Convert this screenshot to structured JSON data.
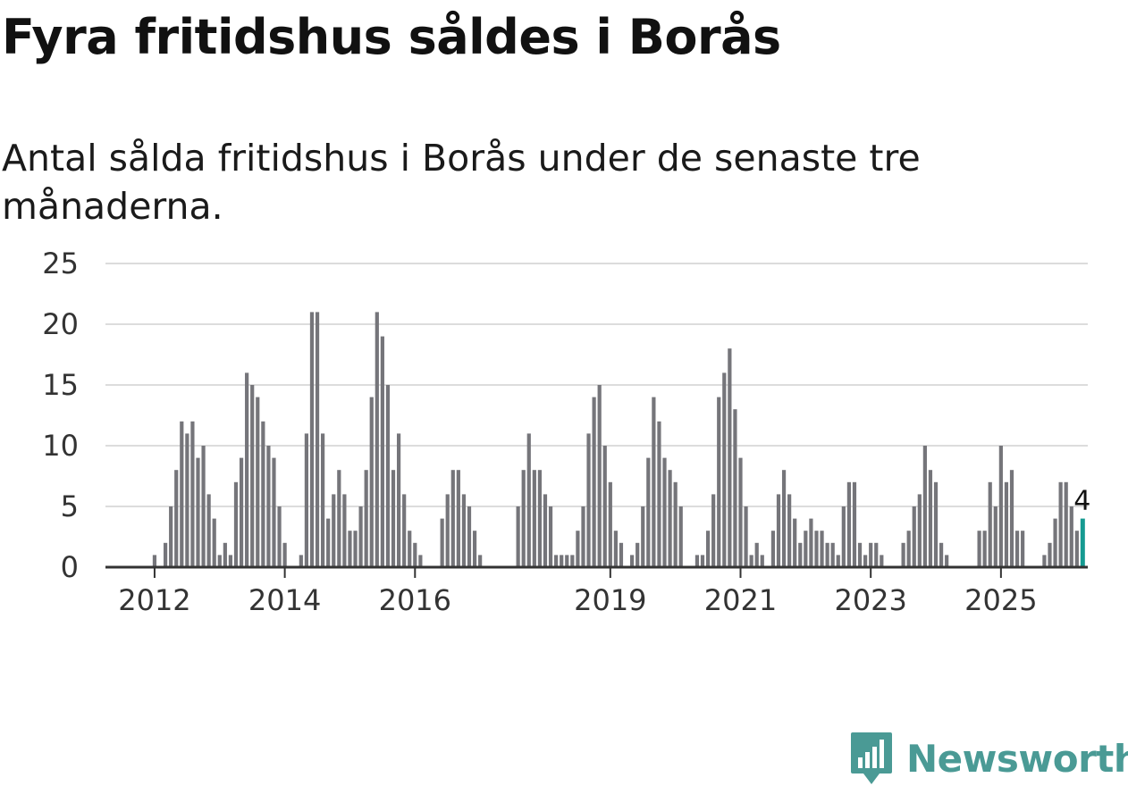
{
  "title": "Fyra fritidshus såldes i Borås",
  "subtitle": "Antal sålda fritidshus i Borås under de senaste tre månaderna.",
  "brand": {
    "name": "Newsworthy",
    "color": "#4a9a95"
  },
  "colors": {
    "bar": "#75757a",
    "highlight": "#159a91",
    "grid": "#dcdcdc",
    "axis": "#333333"
  },
  "chart_data": {
    "type": "bar",
    "title": "Fyra fritidshus såldes i Borås",
    "subtitle": "Antal sålda fritidshus i Borås under de senaste tre månaderna.",
    "xlabel": "",
    "ylabel": "",
    "ylim": [
      0,
      25
    ],
    "yticks": [
      0,
      5,
      10,
      15,
      20,
      25
    ],
    "grid": true,
    "x_start": "2011-01",
    "xtick_labels": [
      {
        "label": "2012",
        "month": "2012-01"
      },
      {
        "label": "2014",
        "month": "2014-01"
      },
      {
        "label": "2016",
        "month": "2016-01"
      },
      {
        "label": "2019",
        "month": "2019-01"
      },
      {
        "label": "2021",
        "month": "2021-01"
      },
      {
        "label": "2023",
        "month": "2023-01"
      },
      {
        "label": "2025",
        "month": "2025-01"
      }
    ],
    "values": [
      0,
      0,
      0,
      0,
      0,
      0,
      0,
      0,
      0,
      0,
      0,
      0,
      1,
      0,
      2,
      5,
      8,
      12,
      11,
      12,
      9,
      10,
      6,
      4,
      1,
      2,
      1,
      7,
      9,
      16,
      15,
      14,
      12,
      10,
      9,
      5,
      2,
      0,
      0,
      1,
      11,
      21,
      21,
      11,
      4,
      6,
      8,
      6,
      3,
      3,
      5,
      8,
      14,
      21,
      19,
      15,
      8,
      11,
      6,
      3,
      2,
      1,
      0,
      0,
      0,
      4,
      6,
      8,
      8,
      6,
      5,
      3,
      1,
      0,
      0,
      0,
      0,
      0,
      0,
      5,
      8,
      11,
      8,
      8,
      6,
      5,
      1,
      1,
      1,
      1,
      3,
      5,
      11,
      14,
      15,
      10,
      7,
      3,
      2,
      0,
      1,
      2,
      5,
      9,
      14,
      12,
      9,
      8,
      7,
      5,
      0,
      0,
      1,
      1,
      3,
      6,
      14,
      16,
      18,
      13,
      9,
      5,
      1,
      2,
      1,
      0,
      3,
      6,
      8,
      6,
      4,
      2,
      3,
      4,
      3,
      3,
      2,
      2,
      1,
      5,
      7,
      7,
      2,
      1,
      2,
      2,
      1,
      0,
      0,
      0,
      2,
      3,
      5,
      6,
      10,
      8,
      7,
      2,
      1,
      0,
      0,
      0,
      0,
      0,
      3,
      3,
      7,
      5,
      10,
      7,
      8,
      3,
      3,
      0,
      0,
      0,
      1,
      2,
      4,
      7,
      7,
      5,
      3,
      4
    ],
    "last_value": 4,
    "last_label": "4"
  }
}
